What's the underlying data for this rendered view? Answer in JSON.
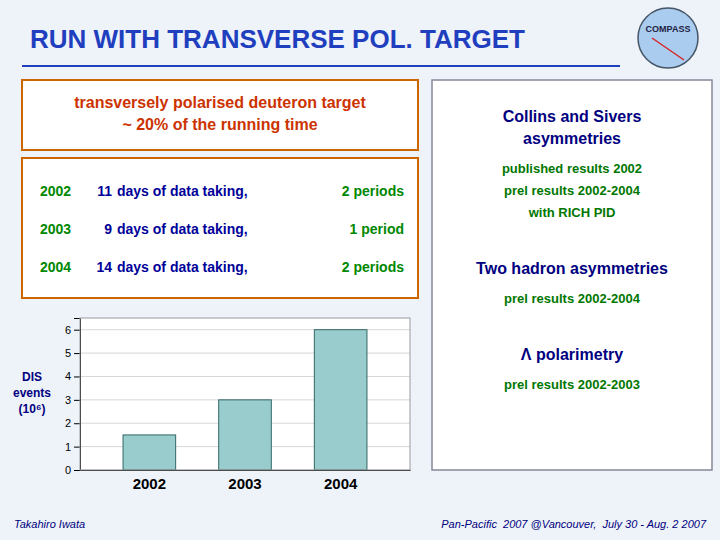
{
  "chart_data": {
    "type": "bar",
    "title": "RUN WITH TRANSVERSE POL. TARGET",
    "subtitle": "transversely polarised deuteron target\n~ 20% of the running time",
    "ylabel": "DIS\nevents\n(10⁶)",
    "categories": [
      "2002",
      "2003",
      "2004"
    ],
    "values": [
      1.5,
      3.0,
      6.0
    ],
    "color": "#99cccc",
    "ylim": [
      0,
      6.5
    ],
    "yticks": [
      0,
      1,
      2,
      3,
      4,
      5,
      6
    ],
    "grid": true,
    "annotations": {
      "logo": "COMPASS",
      "table": [
        [
          "2002",
          "11",
          "days of data taking,",
          "2 periods"
        ],
        [
          "2003",
          "9",
          "days of data taking,",
          "1 period"
        ],
        [
          "2004",
          "14",
          "days of data taking,",
          "2 periods"
        ]
      ],
      "panel": [
        {
          "heading": "Collins and Sivers\nasymmetries",
          "items": [
            "published results 2002",
            "prel results 2002-2004",
            "with RICH PID"
          ]
        },
        {
          "heading": "Two hadron asymmetries",
          "items": [
            "prel results 2002-2004"
          ]
        },
        {
          "heading": "Λ polarimetry",
          "items": [
            "prel results 2002-2003"
          ]
        }
      ],
      "footer": [
        "Takahiro Iwata",
        "Pan-Pacific  2007 @Vancouver,  July 30 - Aug. 2 2007"
      ]
    }
  }
}
